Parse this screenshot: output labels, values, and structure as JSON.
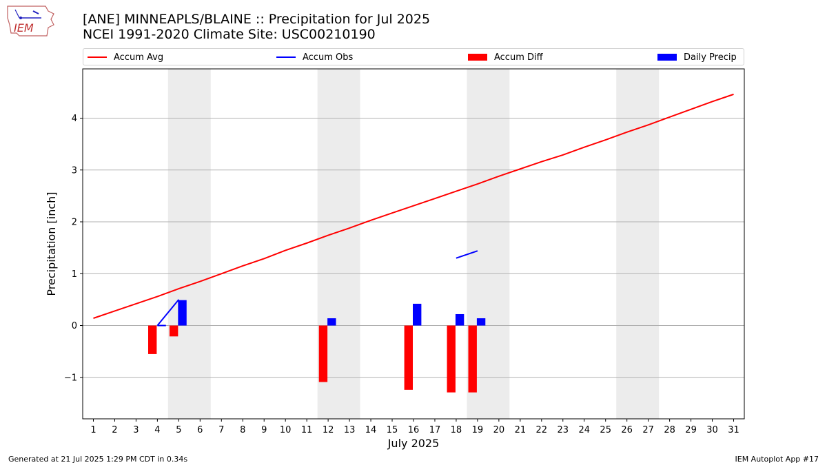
{
  "header": {
    "title_line1": "[ANE] MINNEAPLS/BLAINE :: Precipitation for Jul 2025",
    "title_line2": "NCEI 1991-2020 Climate Site: USC00210190",
    "logo_text": "IEM"
  },
  "legend": {
    "accum_avg": "Accum Avg",
    "accum_obs": "Accum Obs",
    "accum_diff": "Accum Diff",
    "daily_precip": "Daily Precip"
  },
  "footer": {
    "generated": "Generated at 21 Jul 2025 1:29 PM CDT in 0.34s",
    "app": "IEM Autoplot App #17"
  },
  "colors": {
    "avg": "#ff0000",
    "obs": "#0000ff",
    "diff": "#ff0000",
    "daily": "#0000ff",
    "weekend_shade": "#ececec",
    "grid": "#b0b0b0"
  },
  "chart_data": {
    "type": "bar",
    "title": "[ANE] MINNEAPLS/BLAINE :: Precipitation for Jul 2025",
    "xlabel": "July 2025",
    "ylabel": "Precipitation [inch]",
    "xlim": [
      0.5,
      31.5
    ],
    "ylim": [
      -1.8,
      4.95
    ],
    "yticks": [
      -1,
      0,
      1,
      2,
      3,
      4
    ],
    "ytick_labels": [
      "−1",
      "0",
      "1",
      "2",
      "3",
      "4"
    ],
    "x": [
      1,
      2,
      3,
      4,
      5,
      6,
      7,
      8,
      9,
      10,
      11,
      12,
      13,
      14,
      15,
      16,
      17,
      18,
      19,
      20,
      21,
      22,
      23,
      24,
      25,
      26,
      27,
      28,
      29,
      30,
      31
    ],
    "weekend_bands": [
      [
        4.5,
        6.5
      ],
      [
        11.5,
        13.5
      ],
      [
        18.5,
        20.5
      ],
      [
        25.5,
        27.5
      ]
    ],
    "series": [
      {
        "name": "Accum Avg",
        "type": "line",
        "x": [
          1,
          2,
          3,
          4,
          5,
          6,
          7,
          8,
          9,
          10,
          11,
          12,
          13,
          14,
          15,
          16,
          17,
          18,
          19,
          20,
          21,
          22,
          23,
          24,
          25,
          26,
          27,
          28,
          29,
          30,
          31
        ],
        "values": [
          0.14,
          0.28,
          0.42,
          0.56,
          0.71,
          0.85,
          1.0,
          1.15,
          1.29,
          1.45,
          1.59,
          1.74,
          1.88,
          2.03,
          2.17,
          2.31,
          2.45,
          2.59,
          2.73,
          2.88,
          3.02,
          3.16,
          3.29,
          3.44,
          3.58,
          3.73,
          3.87,
          4.02,
          4.17,
          4.32,
          4.46
        ]
      },
      {
        "name": "Accum Obs",
        "type": "line",
        "segments": [
          {
            "x": [
              4.0,
              4.4
            ],
            "values": [
              0.0,
              0.0
            ]
          },
          {
            "x": [
              4.0,
              5.0
            ],
            "values": [
              0.0,
              0.5
            ]
          },
          {
            "x": [
              18.0,
              19.0
            ],
            "values": [
              1.3,
              1.44
            ]
          }
        ]
      },
      {
        "name": "Accum Diff",
        "type": "bar",
        "x": [
          4,
          5,
          12,
          16,
          18,
          19
        ],
        "values": [
          -0.55,
          -0.21,
          -1.09,
          -1.24,
          -1.29,
          -1.29
        ]
      },
      {
        "name": "Daily Precip",
        "type": "bar",
        "x": [
          5,
          12,
          16,
          18,
          19
        ],
        "values": [
          0.49,
          0.14,
          0.42,
          0.22,
          0.14
        ]
      }
    ]
  }
}
